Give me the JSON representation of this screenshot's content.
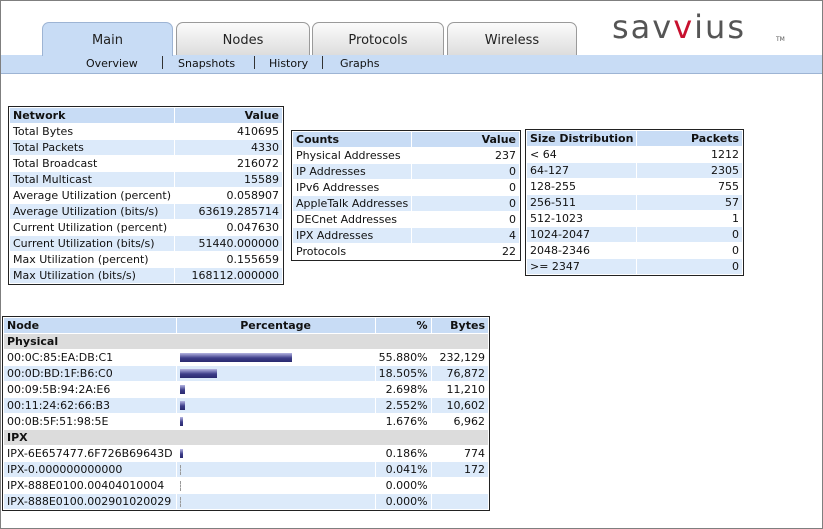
{
  "brand": {
    "logo_text_pre": "sav",
    "logo_text_v": "v",
    "logo_text_post": "ius",
    "logo_tm": "TM",
    "logo_color": "#c8102e"
  },
  "tabs": [
    {
      "label": "Main",
      "active": true
    },
    {
      "label": "Nodes",
      "active": false
    },
    {
      "label": "Protocols",
      "active": false
    },
    {
      "label": "Wireless",
      "active": false
    }
  ],
  "subnav": [
    {
      "label": "Overview"
    },
    {
      "label": "Snapshots"
    },
    {
      "label": "History"
    },
    {
      "label": "Graphs"
    }
  ],
  "network": {
    "headers": [
      "Network",
      "Value"
    ],
    "rows": [
      [
        "Total Bytes",
        "410695"
      ],
      [
        "Total Packets",
        "4330"
      ],
      [
        "Total Broadcast",
        "216072"
      ],
      [
        "Total Multicast",
        "15589"
      ],
      [
        "Average Utilization (percent)",
        "0.058907"
      ],
      [
        "Average Utilization (bits/s)",
        "63619.285714"
      ],
      [
        "Current Utilization (percent)",
        "0.047630"
      ],
      [
        "Current Utilization (bits/s)",
        "51440.000000"
      ],
      [
        "Max Utilization (percent)",
        "0.155659"
      ],
      [
        "Max Utilization (bits/s)",
        "168112.000000"
      ]
    ]
  },
  "counts": {
    "headers": [
      "Counts",
      "Value"
    ],
    "rows": [
      [
        "Physical Addresses",
        "237"
      ],
      [
        "IP Addresses",
        "0"
      ],
      [
        "IPv6 Addresses",
        "0"
      ],
      [
        "AppleTalk Addresses",
        "0"
      ],
      [
        "DECnet Addresses",
        "0"
      ],
      [
        "IPX Addresses",
        "4"
      ],
      [
        "Protocols",
        "22"
      ]
    ]
  },
  "sizes": {
    "headers": [
      "Size Distribution",
      "Packets"
    ],
    "rows": [
      [
        "< 64",
        "1212"
      ],
      [
        "64-127",
        "2305"
      ],
      [
        "128-255",
        "755"
      ],
      [
        "256-511",
        "57"
      ],
      [
        "512-1023",
        "1"
      ],
      [
        "1024-2047",
        "0"
      ],
      [
        "2048-2346",
        "0"
      ],
      [
        ">= 2347",
        "0"
      ]
    ]
  },
  "nodes": {
    "headers": [
      "Node",
      "Percentage",
      "%",
      "Bytes"
    ],
    "sections": [
      {
        "name": "Physical",
        "rows": [
          {
            "node": "00:0C:85:EA:DB:C1",
            "percent": "55.880%",
            "bytes": "232,129",
            "fraction": 0.5588
          },
          {
            "node": "00:0D:BD:1F:B6:C0",
            "percent": "18.505%",
            "bytes": "76,872",
            "fraction": 0.18505
          },
          {
            "node": "00:09:5B:94:2A:E6",
            "percent": "2.698%",
            "bytes": "11,210",
            "fraction": 0.02698
          },
          {
            "node": "00:11:24:62:66:B3",
            "percent": "2.552%",
            "bytes": "10,602",
            "fraction": 0.02552
          },
          {
            "node": "00:0B:5F:51:98:5E",
            "percent": "1.676%",
            "bytes": "6,962",
            "fraction": 0.01676
          }
        ]
      },
      {
        "name": "IPX",
        "rows": [
          {
            "node": "IPX-6E657477.6F726B69643D",
            "percent": "0.186%",
            "bytes": "774",
            "fraction": 0.00186
          },
          {
            "node": "IPX-0.000000000000",
            "percent": "0.041%",
            "bytes": "172",
            "fraction": 0.00041
          },
          {
            "node": "IPX-888E0100.00404010004",
            "percent": "0.000%",
            "bytes": "",
            "fraction": 0
          },
          {
            "node": "IPX-888E0100.002901020029",
            "percent": "0.000%",
            "bytes": "",
            "fraction": 0
          }
        ]
      }
    ]
  }
}
